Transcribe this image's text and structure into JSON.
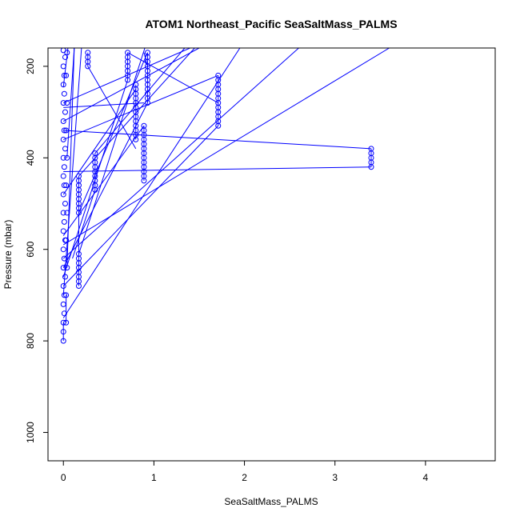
{
  "chart_data": {
    "type": "scatter",
    "title": "ATOM1 Northeast_Pacific SeaSaltMass_PALMS",
    "xlabel": "SeaSaltMass_PALMS",
    "ylabel": "Pressure (mbar)",
    "xlim": [
      -0.17,
      4.77
    ],
    "ylim": [
      1062,
      160
    ],
    "y_inverted": true,
    "xticks": [
      0,
      1,
      2,
      3,
      4
    ],
    "yticks": [
      200,
      400,
      600,
      800,
      1000
    ],
    "grid": false,
    "legend": "none",
    "colors": {
      "series": "#0000ff",
      "frame": "#000000",
      "background": "#ffffff"
    },
    "series": [
      {
        "markers": "open-circle",
        "connected": true,
        "points": [
          [
            0.0,
            800
          ],
          [
            0.0,
            780
          ],
          [
            0.0,
            760
          ],
          [
            0.01,
            740
          ],
          [
            0.0,
            720
          ],
          [
            0.01,
            700
          ],
          [
            0.0,
            680
          ],
          [
            0.02,
            660
          ],
          [
            0.0,
            640
          ],
          [
            0.01,
            620
          ],
          [
            0.0,
            600
          ],
          [
            0.02,
            580
          ],
          [
            0.0,
            560
          ],
          [
            0.01,
            540
          ],
          [
            0.0,
            520
          ],
          [
            0.02,
            500
          ],
          [
            0.0,
            480
          ],
          [
            0.01,
            460
          ],
          [
            0.0,
            440
          ],
          [
            0.01,
            420
          ],
          [
            0.0,
            400
          ],
          [
            0.02,
            380
          ],
          [
            0.0,
            360
          ],
          [
            0.01,
            340
          ],
          [
            0.0,
            320
          ],
          [
            0.02,
            300
          ],
          [
            0.0,
            280
          ],
          [
            0.01,
            260
          ],
          [
            0.0,
            240
          ],
          [
            0.01,
            220
          ],
          [
            0.0,
            200
          ],
          [
            0.02,
            180
          ],
          [
            0.0,
            165
          ],
          [
            0.03,
            760
          ],
          [
            0.03,
            700
          ],
          [
            0.04,
            640
          ],
          [
            0.03,
            580
          ],
          [
            0.04,
            520
          ],
          [
            0.03,
            460
          ],
          [
            0.04,
            400
          ],
          [
            0.03,
            340
          ],
          [
            0.04,
            280
          ],
          [
            0.03,
            220
          ],
          [
            0.04,
            170
          ],
          [
            0.17,
            680
          ],
          [
            0.17,
            670
          ],
          [
            0.17,
            660
          ],
          [
            0.17,
            650
          ],
          [
            0.17,
            640
          ],
          [
            0.17,
            630
          ],
          [
            0.17,
            620
          ],
          [
            0.17,
            610
          ],
          [
            0.17,
            520
          ],
          [
            0.17,
            510
          ],
          [
            0.17,
            500
          ],
          [
            0.17,
            490
          ],
          [
            0.17,
            480
          ],
          [
            0.17,
            470
          ],
          [
            0.17,
            460
          ],
          [
            0.17,
            450
          ],
          [
            0.17,
            440
          ],
          [
            0.27,
            200
          ],
          [
            0.27,
            190
          ],
          [
            0.27,
            180
          ],
          [
            0.27,
            170
          ],
          [
            0.35,
            470
          ],
          [
            0.35,
            460
          ],
          [
            0.35,
            450
          ],
          [
            0.35,
            440
          ],
          [
            0.35,
            430
          ],
          [
            0.35,
            420
          ],
          [
            0.35,
            410
          ],
          [
            0.35,
            400
          ],
          [
            0.35,
            390
          ],
          [
            0.71,
            230
          ],
          [
            0.71,
            220
          ],
          [
            0.71,
            210
          ],
          [
            0.71,
            200
          ],
          [
            0.71,
            190
          ],
          [
            0.71,
            180
          ],
          [
            0.71,
            170
          ],
          [
            0.8,
            360
          ],
          [
            0.8,
            350
          ],
          [
            0.8,
            340
          ],
          [
            0.8,
            330
          ],
          [
            0.8,
            320
          ],
          [
            0.8,
            310
          ],
          [
            0.8,
            300
          ],
          [
            0.8,
            290
          ],
          [
            0.8,
            280
          ],
          [
            0.8,
            270
          ],
          [
            0.8,
            260
          ],
          [
            0.8,
            250
          ],
          [
            0.8,
            240
          ],
          [
            0.89,
            450
          ],
          [
            0.89,
            440
          ],
          [
            0.89,
            430
          ],
          [
            0.89,
            420
          ],
          [
            0.89,
            410
          ],
          [
            0.89,
            400
          ],
          [
            0.89,
            390
          ],
          [
            0.89,
            380
          ],
          [
            0.89,
            370
          ],
          [
            0.89,
            360
          ],
          [
            0.89,
            350
          ],
          [
            0.89,
            340
          ],
          [
            0.89,
            330
          ],
          [
            0.93,
            280
          ],
          [
            0.93,
            270
          ],
          [
            0.93,
            260
          ],
          [
            0.93,
            250
          ],
          [
            0.93,
            240
          ],
          [
            0.93,
            230
          ],
          [
            0.93,
            220
          ],
          [
            0.93,
            210
          ],
          [
            0.93,
            200
          ],
          [
            0.93,
            190
          ],
          [
            0.93,
            180
          ],
          [
            0.93,
            170
          ],
          [
            1.71,
            330
          ],
          [
            1.71,
            320
          ],
          [
            1.71,
            310
          ],
          [
            1.71,
            300
          ],
          [
            1.71,
            290
          ],
          [
            1.71,
            280
          ],
          [
            1.71,
            270
          ],
          [
            1.71,
            260
          ],
          [
            1.71,
            250
          ],
          [
            1.71,
            240
          ],
          [
            1.71,
            230
          ],
          [
            1.71,
            220
          ],
          [
            3.4,
            420
          ],
          [
            3.4,
            410
          ],
          [
            3.4,
            400
          ],
          [
            3.4,
            390
          ],
          [
            3.4,
            380
          ]
        ],
        "segments": [
          [
            [
              0.0,
              430
            ],
            [
              3.4,
              420
            ]
          ],
          [
            [
              0.0,
              340
            ],
            [
              3.4,
              380
            ]
          ],
          [
            [
              0.0,
              480
            ],
            [
              0.8,
              250
            ]
          ],
          [
            [
              0.0,
              570
            ],
            [
              0.89,
              330
            ]
          ],
          [
            [
              0.0,
              640
            ],
            [
              0.93,
              280
            ]
          ],
          [
            [
              0.0,
              680
            ],
            [
              1.71,
              330
            ]
          ],
          [
            [
              0.0,
              750
            ],
            [
              1.95,
              160
            ]
          ],
          [
            [
              0.0,
              660
            ],
            [
              0.71,
              230
            ]
          ],
          [
            [
              0.0,
              360
            ],
            [
              1.71,
              220
            ]
          ],
          [
            [
              0.0,
              280
            ],
            [
              1.4,
              160
            ]
          ],
          [
            [
              0.0,
              290
            ],
            [
              0.89,
              280
            ]
          ],
          [
            [
              0.0,
              320
            ],
            [
              1.5,
              160
            ]
          ],
          [
            [
              0.17,
              440
            ],
            [
              1.45,
              160
            ]
          ],
          [
            [
              0.17,
              610
            ],
            [
              0.9,
              160
            ]
          ],
          [
            [
              0.17,
              520
            ],
            [
              0.93,
              170
            ]
          ],
          [
            [
              0.35,
              390
            ],
            [
              1.34,
              160
            ]
          ],
          [
            [
              0.0,
              590
            ],
            [
              3.6,
              160
            ]
          ],
          [
            [
              0.0,
              620
            ],
            [
              2.6,
              160
            ]
          ],
          [
            [
              0.27,
              200
            ],
            [
              0.8,
              380
            ]
          ],
          [
            [
              0.1,
              620
            ],
            [
              0.35,
              470
            ]
          ],
          [
            [
              0.71,
              170
            ],
            [
              1.71,
              280
            ]
          ],
          [
            [
              0.89,
              170
            ],
            [
              0.93,
              200
            ]
          ],
          [
            [
              0.04,
              640
            ],
            [
              0.12,
              160
            ]
          ],
          [
            [
              0.04,
              400
            ],
            [
              0.12,
              160
            ]
          ],
          [
            [
              0.0,
              700
            ],
            [
              0.2,
              160
            ]
          ],
          [
            [
              0.0,
              245
            ],
            [
              0.05,
              160
            ]
          ]
        ]
      }
    ]
  }
}
